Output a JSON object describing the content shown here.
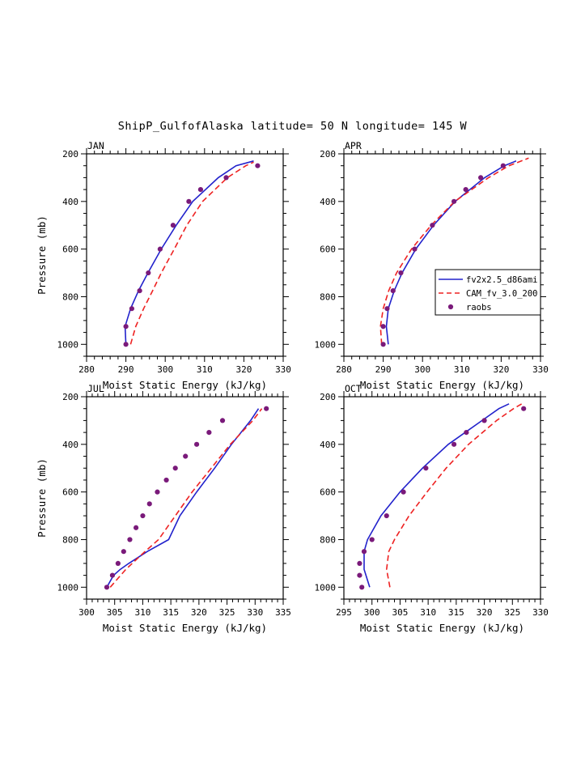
{
  "title": "ShipP_GulfofAlaska  latitude= 50 N longitude= 145 W",
  "axes": {
    "xlabel": "Moist Static Energy (kJ/kg)",
    "ylabel": "Pressure (mb)"
  },
  "legend": {
    "entries": [
      {
        "label": "fv2x2.5_d86ami",
        "style": "solid-line",
        "color": "#2222cc"
      },
      {
        "label": "CAM_fv_3.0_200",
        "style": "dashed-line",
        "color": "#ee2222"
      },
      {
        "label": "raobs",
        "style": "dot",
        "color": "#7a1a7a"
      }
    ]
  },
  "chart_data": [
    {
      "type": "line",
      "month": "JAN",
      "xlim": [
        280,
        330
      ],
      "xticks": [
        280,
        290,
        300,
        310,
        320,
        330
      ],
      "xminor_step": 2,
      "ylim": [
        200,
        1050
      ],
      "yticks": [
        200,
        400,
        600,
        800,
        1000
      ],
      "yminor_step": 50,
      "xlabel": "Moist Static Energy (kJ/kg)",
      "ylabel": "Pressure (mb)",
      "series": [
        {
          "name": "fv2x2.5_d86ami",
          "style": "solid",
          "color": "#2222cc",
          "points": [
            [
              1000,
              290.0
            ],
            [
              925,
              289.8
            ],
            [
              850,
              291.2
            ],
            [
              775,
              293.2
            ],
            [
              700,
              295.6
            ],
            [
              600,
              299.0
            ],
            [
              500,
              302.8
            ],
            [
              400,
              307.0
            ],
            [
              300,
              313.5
            ],
            [
              250,
              318.0
            ],
            [
              230,
              322.5
            ]
          ]
        },
        {
          "name": "CAM_fv_3.0_200",
          "style": "dashed",
          "color": "#ee2222",
          "points": [
            [
              1000,
              291.2
            ],
            [
              925,
              292.5
            ],
            [
              850,
              294.5
            ],
            [
              775,
              296.8
            ],
            [
              700,
              299.0
            ],
            [
              600,
              302.3
            ],
            [
              500,
              305.5
            ],
            [
              400,
              309.5
            ],
            [
              300,
              315.8
            ],
            [
              250,
              320.5
            ],
            [
              235,
              322.5
            ]
          ]
        },
        {
          "name": "raobs",
          "style": "dots",
          "color": "#7a1a7a",
          "points": [
            [
              1000,
              290.0
            ],
            [
              925,
              290.0
            ],
            [
              850,
              291.5
            ],
            [
              775,
              293.5
            ],
            [
              700,
              295.7
            ],
            [
              600,
              298.7
            ],
            [
              500,
              302.0
            ],
            [
              400,
              306.0
            ],
            [
              350,
              309.0
            ],
            [
              300,
              315.5
            ],
            [
              250,
              323.5
            ]
          ]
        }
      ]
    },
    {
      "type": "line",
      "month": "APR",
      "xlim": [
        280,
        330
      ],
      "xticks": [
        280,
        290,
        300,
        310,
        320,
        330
      ],
      "xminor_step": 2,
      "ylim": [
        200,
        1050
      ],
      "yticks": [
        200,
        400,
        600,
        800,
        1000
      ],
      "yminor_step": 50,
      "xlabel": "Moist Static Energy (kJ/kg)",
      "ylabel": "Pressure (mb)",
      "series": [
        {
          "name": "fv2x2.5_d86ami",
          "style": "solid",
          "color": "#2222cc",
          "points": [
            [
              1000,
              291.3
            ],
            [
              925,
              290.8
            ],
            [
              850,
              291.3
            ],
            [
              775,
              292.8
            ],
            [
              700,
              294.8
            ],
            [
              600,
              298.3
            ],
            [
              500,
              302.8
            ],
            [
              400,
              308.3
            ],
            [
              300,
              315.8
            ],
            [
              250,
              320.8
            ],
            [
              230,
              323.8
            ]
          ]
        },
        {
          "name": "CAM_fv_3.0_200",
          "style": "dashed",
          "color": "#ee2222",
          "points": [
            [
              1000,
              289.6
            ],
            [
              925,
              289.3
            ],
            [
              850,
              290.0
            ],
            [
              775,
              291.4
            ],
            [
              700,
              293.4
            ],
            [
              600,
              297.2
            ],
            [
              500,
              302.2
            ],
            [
              400,
              308.2
            ],
            [
              300,
              316.8
            ],
            [
              250,
              322.0
            ],
            [
              218,
              327.0
            ]
          ]
        },
        {
          "name": "raobs",
          "style": "dots",
          "color": "#7a1a7a",
          "points": [
            [
              1000,
              290.0
            ],
            [
              925,
              290.0
            ],
            [
              850,
              291.0
            ],
            [
              775,
              292.5
            ],
            [
              700,
              294.5
            ],
            [
              600,
              298.0
            ],
            [
              500,
              302.5
            ],
            [
              400,
              308.0
            ],
            [
              350,
              311.0
            ],
            [
              300,
              314.8
            ],
            [
              250,
              320.5
            ]
          ]
        }
      ]
    },
    {
      "type": "line",
      "month": "JUL",
      "xlim": [
        300,
        335
      ],
      "xticks": [
        300,
        305,
        310,
        315,
        320,
        325,
        330,
        335
      ],
      "xminor_step": 1,
      "ylim": [
        200,
        1050
      ],
      "yticks": [
        200,
        400,
        600,
        800,
        1000
      ],
      "yminor_step": 50,
      "xlabel": "Moist Static Energy (kJ/kg)",
      "ylabel": "Pressure (mb)",
      "series": [
        {
          "name": "fv2x2.5_d86ami",
          "style": "solid",
          "color": "#2222cc",
          "points": [
            [
              1000,
              303.6
            ],
            [
              950,
              304.8
            ],
            [
              925,
              306.0
            ],
            [
              900,
              307.5
            ],
            [
              850,
              310.8
            ],
            [
              800,
              314.6
            ],
            [
              700,
              316.6
            ],
            [
              600,
              319.6
            ],
            [
              500,
              322.8
            ],
            [
              400,
              325.8
            ],
            [
              300,
              329.2
            ],
            [
              250,
              330.6
            ]
          ]
        },
        {
          "name": "CAM_fv_3.0_200",
          "style": "dashed",
          "color": "#ee2222",
          "points": [
            [
              1000,
              304.2
            ],
            [
              925,
              307.0
            ],
            [
              850,
              310.4
            ],
            [
              800,
              312.8
            ],
            [
              700,
              315.8
            ],
            [
              600,
              318.8
            ],
            [
              500,
              322.2
            ],
            [
              400,
              325.6
            ],
            [
              300,
              329.6
            ],
            [
              250,
              331.2
            ]
          ]
        },
        {
          "name": "raobs",
          "style": "dots",
          "color": "#7a1a7a",
          "points": [
            [
              1000,
              303.6
            ],
            [
              950,
              304.6
            ],
            [
              900,
              305.6
            ],
            [
              850,
              306.6
            ],
            [
              800,
              307.7
            ],
            [
              750,
              308.8
            ],
            [
              700,
              310.0
            ],
            [
              650,
              311.2
            ],
            [
              600,
              312.6
            ],
            [
              550,
              314.2
            ],
            [
              500,
              315.8
            ],
            [
              450,
              317.6
            ],
            [
              400,
              319.6
            ],
            [
              350,
              321.8
            ],
            [
              300,
              324.2
            ],
            [
              250,
              332.0
            ]
          ]
        }
      ]
    },
    {
      "type": "line",
      "month": "OCT",
      "xlim": [
        295,
        330
      ],
      "xticks": [
        295,
        300,
        305,
        310,
        315,
        320,
        325,
        330
      ],
      "xminor_step": 1,
      "ylim": [
        200,
        1050
      ],
      "yticks": [
        200,
        400,
        600,
        800,
        1000
      ],
      "yminor_step": 50,
      "xlabel": "Moist Static Energy (kJ/kg)",
      "ylabel": "Pressure (mb)",
      "series": [
        {
          "name": "fv2x2.5_d86ami",
          "style": "solid",
          "color": "#2222cc",
          "points": [
            [
              1000,
              299.6
            ],
            [
              925,
              298.6
            ],
            [
              850,
              298.6
            ],
            [
              800,
              299.2
            ],
            [
              700,
              301.6
            ],
            [
              600,
              305.0
            ],
            [
              500,
              309.0
            ],
            [
              400,
              313.6
            ],
            [
              300,
              319.6
            ],
            [
              250,
              322.6
            ],
            [
              230,
              324.4
            ]
          ]
        },
        {
          "name": "CAM_fv_3.0_200",
          "style": "dashed",
          "color": "#ee2222",
          "points": [
            [
              1000,
              303.2
            ],
            [
              925,
              302.6
            ],
            [
              850,
              303.0
            ],
            [
              800,
              304.0
            ],
            [
              700,
              306.6
            ],
            [
              600,
              309.8
            ],
            [
              500,
              313.2
            ],
            [
              400,
              317.2
            ],
            [
              300,
              322.2
            ],
            [
              250,
              325.2
            ],
            [
              225,
              327.0
            ]
          ]
        },
        {
          "name": "raobs",
          "style": "dots",
          "color": "#7a1a7a",
          "points": [
            [
              1000,
              298.2
            ],
            [
              950,
              297.8
            ],
            [
              900,
              297.8
            ],
            [
              850,
              298.6
            ],
            [
              800,
              300.0
            ],
            [
              700,
              302.6
            ],
            [
              600,
              305.6
            ],
            [
              500,
              309.6
            ],
            [
              400,
              314.6
            ],
            [
              350,
              316.8
            ],
            [
              300,
              320.0
            ],
            [
              250,
              327.0
            ]
          ]
        }
      ]
    }
  ]
}
